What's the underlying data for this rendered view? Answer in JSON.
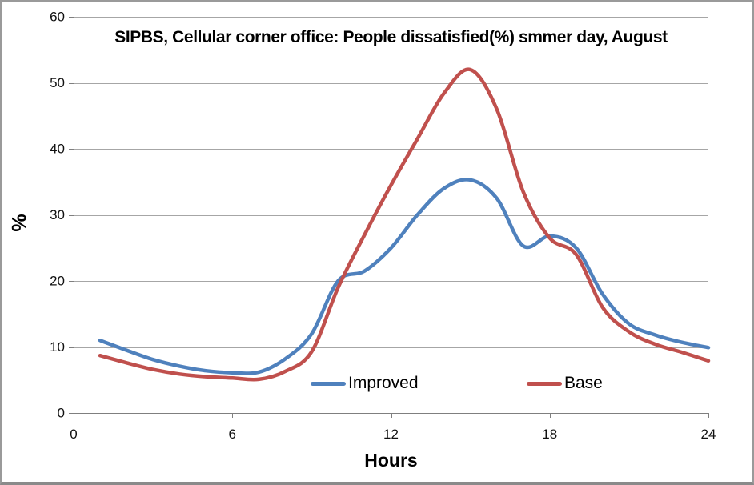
{
  "chart_data": {
    "type": "line",
    "title": "SIPBS, Cellular corner office: People dissatisfied(%) smmer day, August",
    "xlabel": "Hours",
    "ylabel": "%",
    "xlim": [
      0,
      24
    ],
    "ylim": [
      0,
      60
    ],
    "x_ticks": [
      0,
      6,
      12,
      18,
      24
    ],
    "y_ticks": [
      0,
      10,
      20,
      30,
      40,
      50,
      60
    ],
    "grid": "horizontal-only",
    "legend_position": "inside-bottom",
    "line_style": "smooth",
    "x": [
      1,
      2,
      3,
      4,
      5,
      6,
      7,
      8,
      9,
      10,
      11,
      12,
      13,
      14,
      15,
      16,
      17,
      18,
      19,
      20,
      21,
      22,
      23,
      24
    ],
    "series": [
      {
        "name": "Improved",
        "color": "#4F81BD",
        "values": [
          11,
          9.5,
          8.1,
          7.1,
          6.4,
          6.1,
          6.2,
          8.2,
          12,
          20,
          21.5,
          25,
          30,
          34,
          35.3,
          32.5,
          25.3,
          26.8,
          25,
          18,
          13.5,
          11.8,
          10.7,
          9.9
        ]
      },
      {
        "name": "Base",
        "color": "#C0504D",
        "values": [
          8.7,
          7.6,
          6.6,
          5.9,
          5.5,
          5.3,
          5.1,
          6.3,
          9.3,
          19,
          27,
          34.5,
          41.5,
          48.4,
          52,
          46,
          33.5,
          26.5,
          24,
          16,
          12.3,
          10.4,
          9.2,
          7.9
        ]
      }
    ]
  },
  "colors": {
    "gridline": "#A6A6A6",
    "axis": "#7F7F7F",
    "text": "#111111",
    "background": "#FFFFFF"
  }
}
